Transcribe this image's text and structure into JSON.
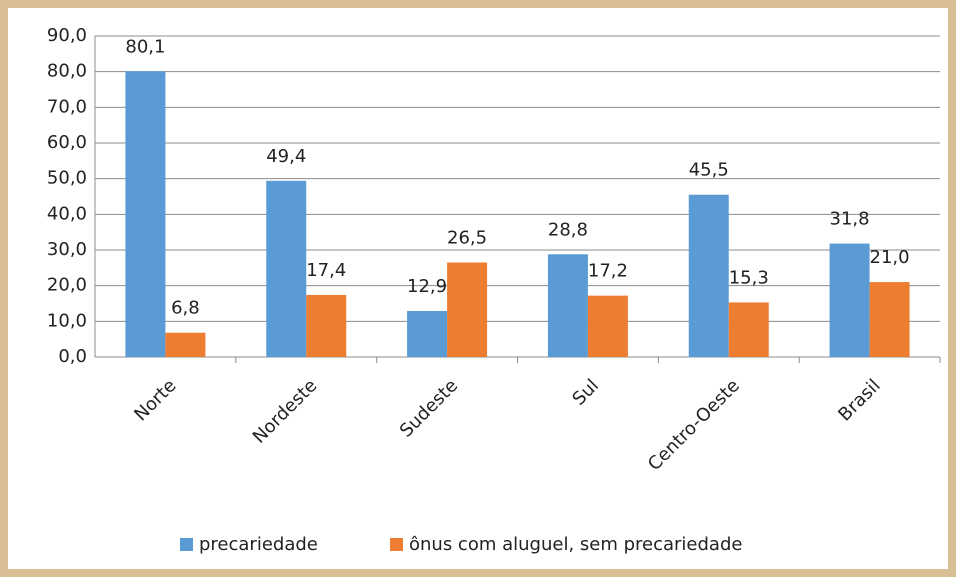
{
  "chart_data": {
    "type": "bar",
    "categories": [
      "Norte",
      "Nordeste",
      "Sudeste",
      "Sul",
      "Centro-Oeste",
      "Brasil"
    ],
    "series": [
      {
        "name": "precariedade",
        "color": "#5b9bd5",
        "values": [
          80.1,
          49.4,
          12.9,
          28.8,
          45.5,
          31.8
        ],
        "value_labels": [
          "80,1",
          "49,4",
          "12,9",
          "28,8",
          "45,5",
          "31,8"
        ]
      },
      {
        "name": "ônus com aluguel, sem precariedade",
        "color": "#ed7d31",
        "values": [
          6.8,
          17.4,
          26.5,
          17.2,
          15.3,
          21.0
        ],
        "value_labels": [
          "6,8",
          "17,4",
          "26,5",
          "17,2",
          "15,3",
          "21,0"
        ]
      }
    ],
    "ylim": [
      0,
      90
    ],
    "yticks": [
      {
        "value": 0,
        "label": "0,0"
      },
      {
        "value": 10,
        "label": "10,0"
      },
      {
        "value": 20,
        "label": "20,0"
      },
      {
        "value": 30,
        "label": "30,0"
      },
      {
        "value": 40,
        "label": "40,0"
      },
      {
        "value": 50,
        "label": "50,0"
      },
      {
        "value": 60,
        "label": "60,0"
      },
      {
        "value": 70,
        "label": "70,0"
      },
      {
        "value": 80,
        "label": "80,0"
      },
      {
        "value": 90,
        "label": "90,0"
      }
    ],
    "grid": true,
    "legend": "bottom"
  }
}
